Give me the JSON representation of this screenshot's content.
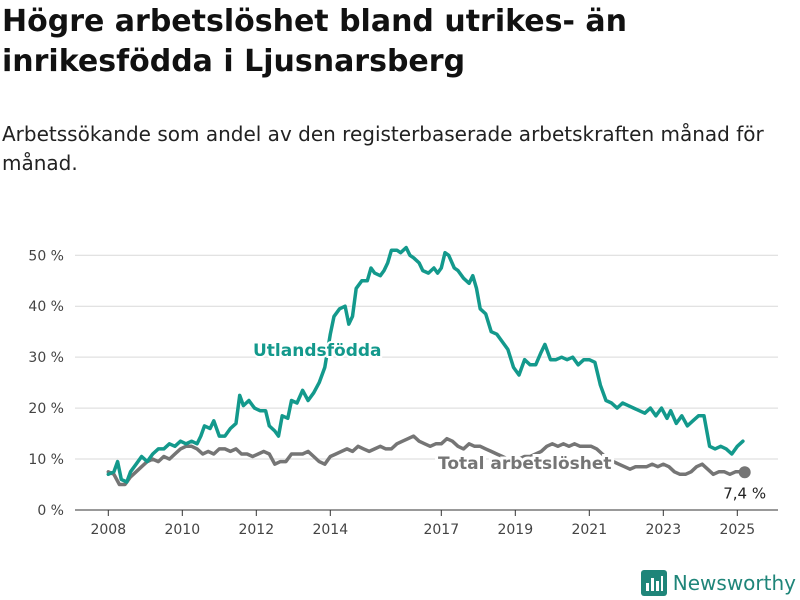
{
  "header": {
    "title": "Högre arbetslöshet bland utrikes- än inrikesfödda i Ljusnarsberg",
    "subtitle": "Arbetssökande som andel av den registerbaserade arbetskraften månad för månad."
  },
  "brand": {
    "name": "Newsworthy",
    "color": "#1f8579"
  },
  "chart_data": {
    "type": "line",
    "y_tick_labels": [
      "0 %",
      "10 %",
      "20 %",
      "30 %",
      "40 %",
      "50 %"
    ],
    "y_ticks": [
      0,
      10,
      20,
      30,
      40,
      50
    ],
    "ylim": [
      0,
      53
    ],
    "x_tick_labels": [
      "2008",
      "2010",
      "2012",
      "2014",
      "2017",
      "2019",
      "2021",
      "2023",
      "2025"
    ],
    "x_ticks": [
      2008.0,
      2010.0,
      2012.0,
      2014.0,
      2017.0,
      2019.0,
      2021.0,
      2023.0,
      2025.0
    ],
    "xlim": [
      2007.1,
      2026.1
    ],
    "grid": "horizontal",
    "end_label": "7,4 %",
    "series": [
      {
        "name": "Utlandsfödda",
        "color": "#13998c",
        "points": [
          [
            2008.0,
            7.0
          ],
          [
            2008.15,
            7.5
          ],
          [
            2008.25,
            9.5
          ],
          [
            2008.35,
            6.0
          ],
          [
            2008.5,
            5.5
          ],
          [
            2008.6,
            7.5
          ],
          [
            2008.75,
            9.0
          ],
          [
            2008.9,
            10.5
          ],
          [
            2009.05,
            9.5
          ],
          [
            2009.2,
            11.0
          ],
          [
            2009.35,
            12.0
          ],
          [
            2009.5,
            12.0
          ],
          [
            2009.65,
            13.0
          ],
          [
            2009.8,
            12.5
          ],
          [
            2009.95,
            13.5
          ],
          [
            2010.1,
            13.0
          ],
          [
            2010.25,
            13.5
          ],
          [
            2010.4,
            13.0
          ],
          [
            2010.5,
            14.5
          ],
          [
            2010.6,
            16.5
          ],
          [
            2010.75,
            16.0
          ],
          [
            2010.85,
            17.5
          ],
          [
            2011.0,
            14.5
          ],
          [
            2011.15,
            14.5
          ],
          [
            2011.3,
            16.0
          ],
          [
            2011.45,
            17.0
          ],
          [
            2011.55,
            22.5
          ],
          [
            2011.65,
            20.5
          ],
          [
            2011.8,
            21.5
          ],
          [
            2011.95,
            20.0
          ],
          [
            2012.1,
            19.5
          ],
          [
            2012.25,
            19.5
          ],
          [
            2012.35,
            16.5
          ],
          [
            2012.5,
            15.5
          ],
          [
            2012.6,
            14.5
          ],
          [
            2012.7,
            18.5
          ],
          [
            2012.85,
            18.0
          ],
          [
            2012.95,
            21.5
          ],
          [
            2013.1,
            21.0
          ],
          [
            2013.25,
            23.5
          ],
          [
            2013.4,
            21.5
          ],
          [
            2013.55,
            23.0
          ],
          [
            2013.7,
            25.0
          ],
          [
            2013.85,
            28.0
          ],
          [
            2014.0,
            34.5
          ],
          [
            2014.1,
            38.0
          ],
          [
            2014.25,
            39.5
          ],
          [
            2014.4,
            40.0
          ],
          [
            2014.5,
            36.5
          ],
          [
            2014.6,
            38.0
          ],
          [
            2014.7,
            43.5
          ],
          [
            2014.85,
            45.0
          ],
          [
            2015.0,
            45.0
          ],
          [
            2015.1,
            47.5
          ],
          [
            2015.2,
            46.5
          ],
          [
            2015.35,
            46.0
          ],
          [
            2015.45,
            47.0
          ],
          [
            2015.55,
            48.5
          ],
          [
            2015.65,
            51.0
          ],
          [
            2015.8,
            51.0
          ],
          [
            2015.9,
            50.5
          ],
          [
            2016.05,
            51.5
          ],
          [
            2016.15,
            50.0
          ],
          [
            2016.25,
            49.5
          ],
          [
            2016.4,
            48.5
          ],
          [
            2016.5,
            47.0
          ],
          [
            2016.65,
            46.5
          ],
          [
            2016.8,
            47.5
          ],
          [
            2016.9,
            46.5
          ],
          [
            2017.0,
            47.5
          ],
          [
            2017.1,
            50.5
          ],
          [
            2017.2,
            50.0
          ],
          [
            2017.35,
            47.5
          ],
          [
            2017.45,
            47.0
          ],
          [
            2017.6,
            45.5
          ],
          [
            2017.75,
            44.5
          ],
          [
            2017.85,
            46.0
          ],
          [
            2017.95,
            43.5
          ],
          [
            2018.05,
            39.5
          ],
          [
            2018.2,
            38.5
          ],
          [
            2018.35,
            35.0
          ],
          [
            2018.5,
            34.5
          ],
          [
            2018.65,
            33.0
          ],
          [
            2018.8,
            31.5
          ],
          [
            2018.95,
            28.0
          ],
          [
            2019.1,
            26.5
          ],
          [
            2019.25,
            29.5
          ],
          [
            2019.4,
            28.5
          ],
          [
            2019.55,
            28.5
          ],
          [
            2019.7,
            31.0
          ],
          [
            2019.8,
            32.5
          ],
          [
            2019.95,
            29.5
          ],
          [
            2020.1,
            29.5
          ],
          [
            2020.25,
            30.0
          ],
          [
            2020.4,
            29.5
          ],
          [
            2020.55,
            30.0
          ],
          [
            2020.7,
            28.5
          ],
          [
            2020.85,
            29.5
          ],
          [
            2021.0,
            29.5
          ],
          [
            2021.15,
            29.0
          ],
          [
            2021.3,
            24.5
          ],
          [
            2021.45,
            21.5
          ],
          [
            2021.6,
            21.0
          ],
          [
            2021.75,
            20.0
          ],
          [
            2021.9,
            21.0
          ],
          [
            2022.05,
            20.5
          ],
          [
            2022.2,
            20.0
          ],
          [
            2022.35,
            19.5
          ],
          [
            2022.5,
            19.0
          ],
          [
            2022.65,
            20.0
          ],
          [
            2022.8,
            18.5
          ],
          [
            2022.95,
            20.0
          ],
          [
            2023.1,
            18.0
          ],
          [
            2023.2,
            19.5
          ],
          [
            2023.35,
            17.0
          ],
          [
            2023.5,
            18.5
          ],
          [
            2023.65,
            16.5
          ],
          [
            2023.8,
            17.5
          ],
          [
            2023.95,
            18.5
          ],
          [
            2024.1,
            18.5
          ],
          [
            2024.25,
            12.5
          ],
          [
            2024.4,
            12.0
          ],
          [
            2024.55,
            12.5
          ],
          [
            2024.7,
            12.0
          ],
          [
            2024.85,
            11.0
          ],
          [
            2025.0,
            12.5
          ],
          [
            2025.15,
            13.5
          ]
        ]
      },
      {
        "name": "Total arbetslöshet",
        "color": "#757575",
        "points": [
          [
            2008.0,
            7.5
          ],
          [
            2008.15,
            7.0
          ],
          [
            2008.3,
            5.0
          ],
          [
            2008.45,
            5.0
          ],
          [
            2008.6,
            6.5
          ],
          [
            2008.75,
            7.5
          ],
          [
            2008.9,
            8.5
          ],
          [
            2009.05,
            9.5
          ],
          [
            2009.2,
            10.0
          ],
          [
            2009.35,
            9.5
          ],
          [
            2009.5,
            10.5
          ],
          [
            2009.65,
            10.0
          ],
          [
            2009.8,
            11.0
          ],
          [
            2009.95,
            12.0
          ],
          [
            2010.1,
            12.5
          ],
          [
            2010.25,
            12.5
          ],
          [
            2010.4,
            12.0
          ],
          [
            2010.55,
            11.0
          ],
          [
            2010.7,
            11.5
          ],
          [
            2010.85,
            11.0
          ],
          [
            2011.0,
            12.0
          ],
          [
            2011.15,
            12.0
          ],
          [
            2011.3,
            11.5
          ],
          [
            2011.45,
            12.0
          ],
          [
            2011.6,
            11.0
          ],
          [
            2011.75,
            11.0
          ],
          [
            2011.9,
            10.5
          ],
          [
            2012.05,
            11.0
          ],
          [
            2012.2,
            11.5
          ],
          [
            2012.35,
            11.0
          ],
          [
            2012.5,
            9.0
          ],
          [
            2012.65,
            9.5
          ],
          [
            2012.8,
            9.5
          ],
          [
            2012.95,
            11.0
          ],
          [
            2013.1,
            11.0
          ],
          [
            2013.25,
            11.0
          ],
          [
            2013.4,
            11.5
          ],
          [
            2013.55,
            10.5
          ],
          [
            2013.7,
            9.5
          ],
          [
            2013.85,
            9.0
          ],
          [
            2014.0,
            10.5
          ],
          [
            2014.15,
            11.0
          ],
          [
            2014.3,
            11.5
          ],
          [
            2014.45,
            12.0
          ],
          [
            2014.6,
            11.5
          ],
          [
            2014.75,
            12.5
          ],
          [
            2014.9,
            12.0
          ],
          [
            2015.05,
            11.5
          ],
          [
            2015.2,
            12.0
          ],
          [
            2015.35,
            12.5
          ],
          [
            2015.5,
            12.0
          ],
          [
            2015.65,
            12.0
          ],
          [
            2015.8,
            13.0
          ],
          [
            2015.95,
            13.5
          ],
          [
            2016.1,
            14.0
          ],
          [
            2016.25,
            14.5
          ],
          [
            2016.4,
            13.5
          ],
          [
            2016.55,
            13.0
          ],
          [
            2016.7,
            12.5
          ],
          [
            2016.85,
            13.0
          ],
          [
            2017.0,
            13.0
          ],
          [
            2017.15,
            14.0
          ],
          [
            2017.3,
            13.5
          ],
          [
            2017.45,
            12.5
          ],
          [
            2017.6,
            12.0
          ],
          [
            2017.75,
            13.0
          ],
          [
            2017.9,
            12.5
          ],
          [
            2018.05,
            12.5
          ],
          [
            2018.2,
            12.0
          ],
          [
            2018.35,
            11.5
          ],
          [
            2018.5,
            11.0
          ],
          [
            2018.65,
            10.5
          ],
          [
            2018.8,
            10.0
          ],
          [
            2018.95,
            10.0
          ],
          [
            2019.1,
            10.0
          ],
          [
            2019.25,
            10.5
          ],
          [
            2019.4,
            10.5
          ],
          [
            2019.55,
            11.0
          ],
          [
            2019.7,
            11.5
          ],
          [
            2019.85,
            12.5
          ],
          [
            2020.0,
            13.0
          ],
          [
            2020.15,
            12.5
          ],
          [
            2020.3,
            13.0
          ],
          [
            2020.45,
            12.5
          ],
          [
            2020.6,
            13.0
          ],
          [
            2020.75,
            12.5
          ],
          [
            2020.9,
            12.5
          ],
          [
            2021.05,
            12.5
          ],
          [
            2021.2,
            12.0
          ],
          [
            2021.35,
            11.0
          ],
          [
            2021.5,
            10.0
          ],
          [
            2021.65,
            9.5
          ],
          [
            2021.8,
            9.0
          ],
          [
            2021.95,
            8.5
          ],
          [
            2022.1,
            8.0
          ],
          [
            2022.25,
            8.5
          ],
          [
            2022.4,
            8.5
          ],
          [
            2022.55,
            8.5
          ],
          [
            2022.7,
            9.0
          ],
          [
            2022.85,
            8.5
          ],
          [
            2023.0,
            9.0
          ],
          [
            2023.15,
            8.5
          ],
          [
            2023.3,
            7.5
          ],
          [
            2023.45,
            7.0
          ],
          [
            2023.6,
            7.0
          ],
          [
            2023.75,
            7.5
          ],
          [
            2023.9,
            8.5
          ],
          [
            2024.05,
            9.0
          ],
          [
            2024.2,
            8.0
          ],
          [
            2024.35,
            7.0
          ],
          [
            2024.5,
            7.5
          ],
          [
            2024.65,
            7.5
          ],
          [
            2024.8,
            7.0
          ],
          [
            2024.95,
            7.5
          ],
          [
            2025.1,
            7.5
          ],
          [
            2025.2,
            7.4
          ]
        ]
      }
    ]
  }
}
